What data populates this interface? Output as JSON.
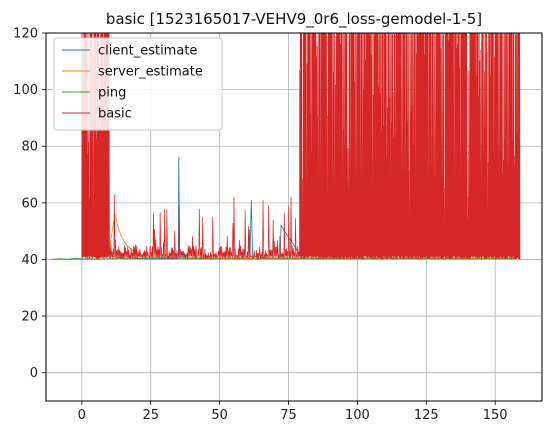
{
  "chart_data": {
    "type": "line",
    "title": "basic [1523165017-VEHV9_0r6_loss-gemodel-1-5]",
    "xlabel": "",
    "ylabel": "",
    "xlim": [
      -13,
      167
    ],
    "ylim": [
      -10,
      120
    ],
    "xticks": [
      0,
      25,
      50,
      75,
      100,
      125,
      150
    ],
    "yticks": [
      0,
      20,
      40,
      60,
      80,
      100,
      120
    ],
    "grid": true,
    "legend_position": "upper-left",
    "series": [
      {
        "name": "client_estimate",
        "color": "#1f77b4",
        "x": [
          -11,
          0,
          1,
          2,
          3,
          4,
          5,
          6,
          7,
          8,
          9,
          9.5,
          10,
          11,
          15,
          20,
          25,
          30,
          35,
          35.2,
          35.5,
          40,
          50,
          60,
          61,
          61.5,
          62,
          70,
          72,
          72.3,
          80,
          100,
          120,
          140,
          150,
          154,
          154.3,
          158
        ],
        "y": [
          40,
          40,
          43,
          42,
          44,
          43,
          42,
          43,
          42,
          44,
          43,
          80,
          44,
          41,
          40.5,
          40.5,
          40.5,
          40.5,
          40.5,
          76,
          41,
          40.5,
          40.5,
          40.5,
          40.5,
          61,
          41,
          40.5,
          40.5,
          52,
          40.5,
          40.5,
          40.5,
          40.5,
          40.5,
          40.5,
          48,
          40.5
        ]
      },
      {
        "name": "server_estimate",
        "color": "#ff7f0e",
        "x": [
          -11,
          0,
          5,
          8,
          10,
          11,
          12,
          13,
          14,
          15,
          16,
          17,
          18,
          20,
          22,
          25,
          30,
          40,
          60,
          80,
          100,
          120,
          140,
          158
        ],
        "y": [
          40,
          40,
          40,
          41,
          43,
          50,
          56,
          52,
          49,
          47,
          45.5,
          44.5,
          43.5,
          42.5,
          41.5,
          41,
          40.8,
          40.5,
          40.5,
          40.5,
          40.5,
          40.5,
          40.5,
          40.5
        ]
      },
      {
        "name": "ping",
        "color": "#2ca02c",
        "x": [
          -11,
          -8,
          -5,
          -2,
          0,
          3,
          6,
          9,
          12,
          15,
          20,
          30,
          40,
          60,
          80,
          100,
          120,
          140,
          158
        ],
        "y": [
          40,
          40.3,
          40.1,
          40.4,
          40.2,
          40.3,
          40.1,
          40.2,
          40.3,
          40.4,
          40.3,
          40.2,
          40.3,
          40.2,
          40.3,
          40.2,
          40.3,
          40.2,
          40.3
        ]
      },
      {
        "name": "basic",
        "color": "#d62728",
        "segments": [
          {
            "x_start": 0,
            "x_end": 10,
            "spike_count": 46,
            "low": 40,
            "high": 120
          },
          {
            "x_start": 10,
            "x_end": 79,
            "spike_count": 170,
            "low": 40,
            "high": 63
          },
          {
            "x_start": 79,
            "x_end": 159,
            "spike_count": 420,
            "low": 40,
            "high": 120
          }
        ]
      }
    ]
  }
}
